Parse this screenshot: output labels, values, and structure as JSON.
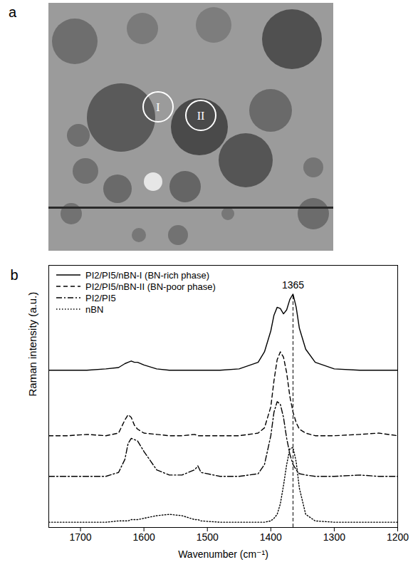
{
  "image_panel": {
    "label": "a",
    "markers": [
      "I",
      "II"
    ]
  },
  "chart_data": {
    "type": "line",
    "panel_label": "b",
    "x_label": "Wavenumber (cm⁻¹)",
    "y_label": "Raman intensity (a.u.)",
    "xlim": [
      1750,
      1200
    ],
    "xticks": [
      1700,
      1600,
      1500,
      1400,
      1300,
      1200
    ],
    "ylim": [
      0,
      10
    ],
    "yticks": [],
    "tick_labels": "x",
    "grid": false,
    "legend": "top-left",
    "annotations": [
      {
        "text": "1365",
        "x": 1365
      }
    ],
    "x": [
      1750,
      1720,
      1690,
      1660,
      1640,
      1630,
      1625,
      1620,
      1615,
      1610,
      1600,
      1580,
      1560,
      1540,
      1520,
      1515,
      1510,
      1480,
      1450,
      1420,
      1410,
      1400,
      1395,
      1390,
      1385,
      1380,
      1375,
      1370,
      1365,
      1360,
      1355,
      1345,
      1330,
      1300,
      1260,
      1230,
      1200
    ],
    "series": [
      {
        "name": "PI2/PI5/nBN-I (BN-rich phase)",
        "color": "#000000",
        "line_style": "solid",
        "values": [
          6.0,
          6.0,
          6.0,
          6.05,
          6.1,
          6.25,
          6.3,
          6.35,
          6.3,
          6.3,
          6.2,
          6.05,
          6.0,
          6.0,
          6.0,
          6.0,
          6.0,
          6.0,
          6.05,
          6.3,
          6.7,
          7.5,
          8.1,
          8.4,
          8.35,
          8.15,
          8.3,
          8.7,
          8.9,
          8.4,
          7.6,
          6.8,
          6.3,
          6.05,
          6.0,
          6.0,
          6.0
        ]
      },
      {
        "name": "PI2/PI5/nBN-II (BN-poor phase)",
        "color": "#000000",
        "line_style": "dashed",
        "values": [
          3.5,
          3.5,
          3.55,
          3.5,
          3.6,
          4.1,
          4.3,
          4.2,
          3.9,
          3.75,
          3.6,
          3.55,
          3.5,
          3.5,
          3.55,
          3.5,
          3.5,
          3.5,
          3.5,
          3.6,
          3.8,
          4.6,
          5.6,
          6.4,
          6.7,
          6.5,
          5.9,
          5.0,
          4.4,
          4.0,
          3.75,
          3.6,
          3.5,
          3.5,
          3.55,
          3.6,
          3.5
        ]
      },
      {
        "name": "PI2/PI5",
        "color": "#000000",
        "line_style": "dashdot",
        "values": [
          1.95,
          1.95,
          1.95,
          1.95,
          2.1,
          2.6,
          3.2,
          3.4,
          3.35,
          3.3,
          2.9,
          2.2,
          2.0,
          2.0,
          2.2,
          2.35,
          2.1,
          1.95,
          1.95,
          2.05,
          2.4,
          3.5,
          4.4,
          4.8,
          4.7,
          4.2,
          3.4,
          2.8,
          2.4,
          2.2,
          2.05,
          2.0,
          1.95,
          1.95,
          2.0,
          1.95,
          1.95
        ]
      },
      {
        "name": "nBN",
        "color": "#000000",
        "line_style": "dotted",
        "values": [
          0.2,
          0.2,
          0.2,
          0.2,
          0.25,
          0.25,
          0.25,
          0.3,
          0.3,
          0.3,
          0.35,
          0.45,
          0.5,
          0.45,
          0.3,
          0.3,
          0.25,
          0.2,
          0.2,
          0.2,
          0.2,
          0.25,
          0.35,
          0.5,
          0.9,
          1.6,
          2.4,
          3.0,
          3.05,
          2.5,
          1.5,
          0.5,
          0.25,
          0.2,
          0.2,
          0.2,
          0.2
        ]
      }
    ]
  }
}
